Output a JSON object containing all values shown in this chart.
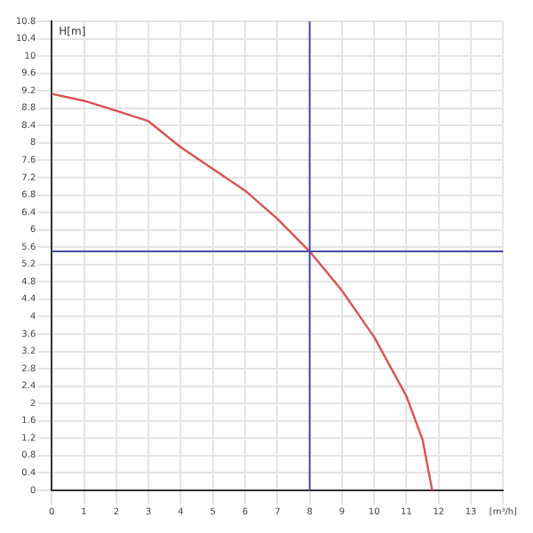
{
  "chart_data": {
    "type": "line",
    "ylabel": "H[m]",
    "x": [
      0,
      1,
      2,
      3,
      4,
      5,
      6,
      7,
      8,
      9,
      10,
      11,
      11.5,
      11.8
    ],
    "series": [
      {
        "color": "#d9534f",
        "values": [
          9.13,
          8.97,
          8.74,
          8.5,
          7.9,
          7.4,
          6.9,
          6.25,
          5.5,
          4.6,
          3.53,
          2.17,
          1.17,
          0
        ]
      }
    ],
    "xlim": [
      0,
      14
    ],
    "xticks": [
      0,
      1,
      2,
      3,
      4,
      5,
      6,
      7,
      8,
      9,
      10,
      11,
      12,
      13,
      {
        "value": 14,
        "label": "[m³/h]"
      }
    ],
    "ylim": [
      0,
      10.8
    ],
    "yticks": [
      0,
      0.4,
      0.8,
      1.2,
      1.6,
      2,
      2.4,
      2.8,
      3.2,
      3.6,
      4,
      4.4,
      4.8,
      5.2,
      5.6,
      6,
      6.4,
      6.8,
      7.2,
      7.6,
      8,
      8.4,
      8.8,
      9.2,
      9.6,
      10,
      10.4,
      10.8
    ],
    "ref_lines": [
      {
        "axis": "x",
        "value": 8,
        "color": "#4a4aa8"
      },
      {
        "axis": "y",
        "value": 5.5,
        "color": "#4a4aa8"
      }
    ],
    "grid": true,
    "marker": "none",
    "line_style": "solid"
  }
}
